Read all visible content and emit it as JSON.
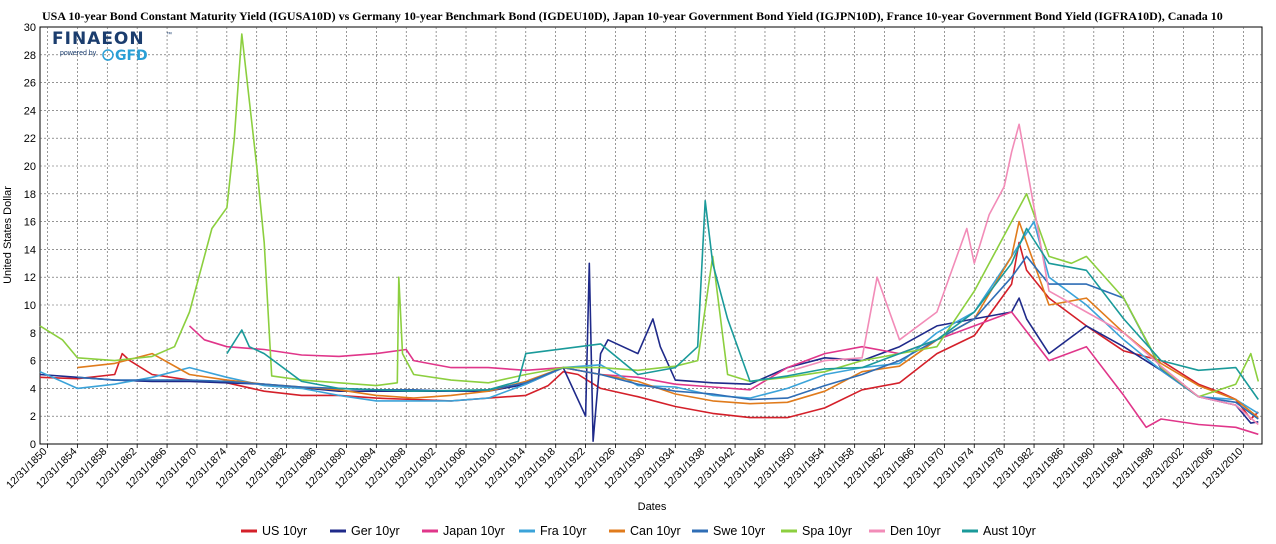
{
  "title": "USA 10-year Bond Constant Maturity Yield (IGUSA10D)  vs  Germany 10-year Benchmark Bond (IGDEU10D), Japan 10-year Government Bond Yield (IGJPN10D), France 10-year Government Bond Yield (IGFRA10D), Canada 10",
  "logo": {
    "brand": "FINAEON",
    "tm": "™",
    "powered_by": "powered by",
    "gfd": "GFD"
  },
  "chart_data": {
    "type": "line",
    "xlabel": "Dates",
    "ylabel": "United States Dollar",
    "ylim": [
      0,
      30
    ],
    "xlim": [
      1850.0,
      2013.5
    ],
    "grid": true,
    "legend_position": "bottom",
    "y_ticks": [
      0,
      2,
      4,
      6,
      8,
      10,
      12,
      14,
      16,
      18,
      20,
      22,
      24,
      26,
      28,
      30
    ],
    "x_ticks": [
      "12/31/1850",
      "12/31/1854",
      "12/31/1858",
      "12/31/1862",
      "12/31/1866",
      "12/31/1870",
      "12/31/1874",
      "12/31/1878",
      "12/31/1882",
      "12/31/1886",
      "12/31/1890",
      "12/31/1894",
      "12/31/1898",
      "12/31/1902",
      "12/31/1906",
      "12/31/1910",
      "12/31/1914",
      "12/31/1918",
      "12/31/1922",
      "12/31/1926",
      "12/31/1930",
      "12/31/1934",
      "12/31/1938",
      "12/31/1942",
      "12/31/1946",
      "12/31/1950",
      "12/31/1954",
      "12/31/1958",
      "12/31/1962",
      "12/31/1966",
      "12/31/1970",
      "12/31/1974",
      "12/31/1978",
      "12/31/1982",
      "12/31/1986",
      "12/31/1990",
      "12/31/1994",
      "12/31/1998",
      "12/31/2002",
      "12/31/2006",
      "12/31/2010"
    ],
    "series": [
      {
        "name": "US 10yr",
        "color": "#d4202a",
        "x": [
          1850,
          1855,
          1860,
          1861,
          1862,
          1865,
          1870,
          1875,
          1880,
          1885,
          1890,
          1895,
          1900,
          1905,
          1910,
          1915,
          1918,
          1920,
          1922,
          1925,
          1930,
          1935,
          1940,
          1945,
          1950,
          1955,
          1960,
          1965,
          1970,
          1975,
          1980,
          1981,
          1982,
          1985,
          1990,
          1995,
          2000,
          2005,
          2008,
          2010,
          2012,
          2013
        ],
        "y": [
          4.8,
          4.7,
          5.0,
          6.5,
          6.0,
          5.0,
          4.6,
          4.4,
          3.8,
          3.5,
          3.5,
          3.3,
          3.2,
          3.1,
          3.3,
          3.5,
          4.2,
          5.2,
          5.0,
          4.0,
          3.4,
          2.7,
          2.2,
          1.9,
          1.9,
          2.6,
          3.9,
          4.4,
          6.5,
          7.8,
          11.5,
          14.5,
          12.5,
          10.5,
          8.5,
          6.7,
          6.0,
          4.3,
          3.7,
          3.2,
          1.8,
          2.3
        ]
      },
      {
        "name": "Ger 10yr",
        "color": "#1f2a8a",
        "x": [
          1850,
          1855,
          1860,
          1865,
          1870,
          1875,
          1880,
          1890,
          1900,
          1910,
          1915,
          1920,
          1923,
          1923.5,
          1924,
          1925,
          1926,
          1930,
          1932,
          1933,
          1935,
          1940,
          1945,
          1950,
          1955,
          1960,
          1965,
          1970,
          1975,
          1980,
          1981,
          1982,
          1985,
          1990,
          1995,
          2000,
          2005,
          2010,
          2012,
          2013
        ],
        "y": [
          5.0,
          4.8,
          4.6,
          4.5,
          4.5,
          4.4,
          4.3,
          3.8,
          3.8,
          3.8,
          4.3,
          5.5,
          2.0,
          13.0,
          0.2,
          6.5,
          7.5,
          6.5,
          9.0,
          7.0,
          4.6,
          4.4,
          4.3,
          5.5,
          6.2,
          6.0,
          7.0,
          8.5,
          9.0,
          9.5,
          10.5,
          9.0,
          6.5,
          8.5,
          7.0,
          5.3,
          3.4,
          2.8,
          1.5,
          1.6
        ]
      },
      {
        "name": "Japan 10yr",
        "color": "#e0368a",
        "x": [
          1870,
          1872,
          1875,
          1880,
          1885,
          1890,
          1895,
          1899,
          1900,
          1905,
          1910,
          1915,
          1920,
          1925,
          1930,
          1935,
          1940,
          1945,
          1950,
          1955,
          1960,
          1965,
          1970,
          1975,
          1980,
          1985,
          1990,
          1995,
          1998,
          2000,
          2005,
          2010,
          2013
        ],
        "y": [
          8.5,
          7.5,
          7.0,
          6.8,
          6.4,
          6.3,
          6.5,
          6.8,
          6.0,
          5.5,
          5.5,
          5.3,
          5.5,
          5.0,
          4.8,
          4.3,
          4.1,
          3.9,
          5.5,
          6.5,
          7.0,
          6.5,
          7.5,
          8.5,
          9.5,
          6.0,
          7.0,
          3.5,
          1.2,
          1.8,
          1.4,
          1.2,
          0.7
        ]
      },
      {
        "name": "Fra 10yr",
        "color": "#3ba3d9",
        "x": [
          1850,
          1855,
          1860,
          1865,
          1870,
          1875,
          1880,
          1885,
          1890,
          1895,
          1900,
          1905,
          1910,
          1915,
          1920,
          1925,
          1930,
          1935,
          1940,
          1945,
          1950,
          1955,
          1960,
          1965,
          1970,
          1975,
          1980,
          1983,
          1985,
          1990,
          1995,
          2000,
          2005,
          2010,
          2013
        ],
        "y": [
          5.2,
          4.0,
          4.3,
          4.8,
          5.5,
          4.8,
          4.2,
          4.0,
          3.5,
          3.1,
          3.1,
          3.1,
          3.3,
          4.3,
          5.5,
          5.7,
          4.2,
          4.1,
          3.5,
          3.3,
          4.0,
          5.0,
          5.5,
          5.8,
          8.0,
          9.5,
          13.5,
          16.0,
          12.0,
          10.0,
          7.5,
          5.3,
          3.4,
          3.2,
          2.2
        ]
      },
      {
        "name": "Can 10yr",
        "color": "#e07b1c",
        "x": [
          1855,
          1860,
          1865,
          1870,
          1875,
          1880,
          1885,
          1890,
          1895,
          1900,
          1905,
          1910,
          1915,
          1920,
          1925,
          1930,
          1935,
          1940,
          1945,
          1950,
          1955,
          1960,
          1965,
          1970,
          1975,
          1980,
          1981,
          1985,
          1990,
          1995,
          2000,
          2005,
          2010,
          2013
        ],
        "y": [
          5.5,
          5.8,
          6.5,
          5.0,
          4.6,
          4.3,
          4.1,
          3.9,
          3.5,
          3.3,
          3.5,
          3.8,
          4.5,
          5.5,
          5.0,
          4.5,
          3.6,
          3.1,
          2.9,
          3.0,
          3.8,
          5.2,
          5.6,
          7.5,
          9.0,
          13.5,
          16.0,
          10.0,
          10.5,
          8.0,
          5.8,
          4.2,
          3.2,
          1.9
        ]
      },
      {
        "name": "Swe 10yr",
        "color": "#2f6db5",
        "x": [
          1855,
          1860,
          1865,
          1870,
          1875,
          1880,
          1885,
          1890,
          1895,
          1900,
          1905,
          1910,
          1915,
          1920,
          1925,
          1930,
          1935,
          1940,
          1945,
          1950,
          1955,
          1960,
          1965,
          1970,
          1975,
          1980,
          1982,
          1985,
          1990,
          1995,
          2000,
          2005,
          2010,
          2013
        ],
        "y": [
          4.8,
          4.6,
          4.6,
          4.6,
          4.5,
          4.3,
          4.1,
          4.0,
          3.9,
          3.9,
          3.8,
          3.9,
          4.4,
          5.5,
          5.0,
          4.3,
          3.8,
          3.6,
          3.2,
          3.3,
          4.2,
          5.0,
          6.0,
          7.5,
          9.0,
          12.0,
          13.5,
          11.5,
          11.5,
          10.5,
          5.4,
          3.4,
          3.0,
          1.8
        ]
      },
      {
        "name": "Spa 10yr",
        "color": "#8ccf3f",
        "x": [
          1850,
          1853,
          1855,
          1860,
          1865,
          1868,
          1870,
          1873,
          1875,
          1876,
          1877,
          1879,
          1880,
          1881,
          1885,
          1890,
          1895,
          1897.8,
          1898,
          1898.5,
          1900,
          1905,
          1910,
          1915,
          1920,
          1925,
          1930,
          1935,
          1938,
          1940,
          1942,
          1945,
          1950,
          1955,
          1960,
          1965,
          1970,
          1975,
          1980,
          1982,
          1985,
          1988,
          1990,
          1995,
          2000,
          2005,
          2010,
          2012,
          2013
        ],
        "y": [
          8.5,
          7.5,
          6.2,
          6.0,
          6.3,
          7.0,
          9.5,
          15.5,
          17.0,
          22.0,
          29.5,
          20.0,
          14.5,
          4.9,
          4.6,
          4.4,
          4.2,
          4.4,
          12.0,
          6.5,
          5.0,
          4.6,
          4.4,
          5.0,
          5.5,
          5.5,
          5.3,
          5.6,
          6.0,
          13.5,
          5.0,
          4.5,
          4.8,
          5.2,
          6.0,
          6.5,
          7.0,
          11.0,
          16.0,
          18.0,
          13.5,
          13.0,
          13.5,
          10.5,
          5.5,
          3.4,
          4.3,
          6.5,
          4.5
        ]
      },
      {
        "name": "Den 10yr",
        "color": "#f28cb8",
        "x": [
          1950,
          1955,
          1960,
          1962,
          1965,
          1970,
          1974,
          1975,
          1977,
          1979,
          1980,
          1981,
          1982,
          1985,
          1990,
          1995,
          2000,
          2005,
          2010,
          2013
        ],
        "y": [
          5.2,
          6.0,
          6.2,
          12.0,
          7.5,
          9.5,
          15.5,
          13.0,
          16.5,
          18.5,
          21.0,
          23.0,
          20.0,
          11.0,
          9.5,
          8.0,
          5.6,
          3.4,
          2.8,
          1.4
        ]
      },
      {
        "name": "Aust 10yr",
        "color": "#1a9a9a",
        "x": [
          1875,
          1877,
          1878,
          1880,
          1885,
          1890,
          1900,
          1910,
          1914,
          1915,
          1925,
          1930,
          1935,
          1938,
          1939,
          1940,
          1942,
          1945,
          1950,
          1955,
          1960,
          1965,
          1970,
          1975,
          1980,
          1982,
          1985,
          1990,
          1995,
          2000,
          2005,
          2010,
          2013
        ],
        "y": [
          6.5,
          8.2,
          7.0,
          6.5,
          4.5,
          4.0,
          3.8,
          3.9,
          4.5,
          6.5,
          7.2,
          5.0,
          5.5,
          7.0,
          17.5,
          13.0,
          9.0,
          4.5,
          4.9,
          5.4,
          5.5,
          6.5,
          7.5,
          9.5,
          13.0,
          15.5,
          13.0,
          12.5,
          9.0,
          6.0,
          5.3,
          5.5,
          3.2
        ]
      }
    ]
  }
}
